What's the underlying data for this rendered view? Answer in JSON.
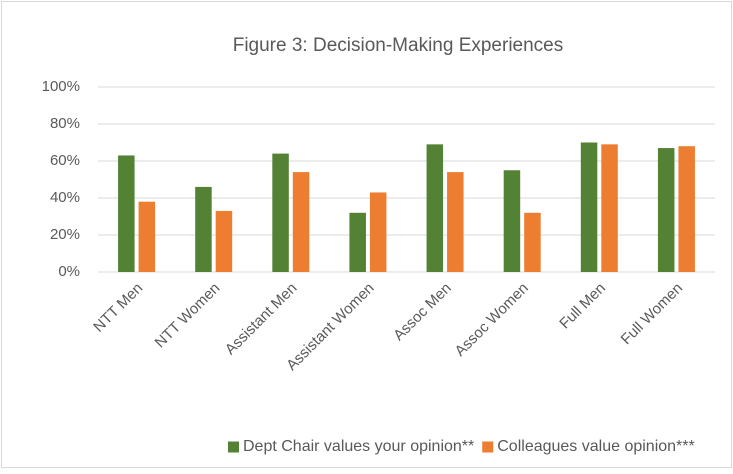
{
  "chart_data": {
    "type": "bar",
    "title": "Figure 3: Decision-Making Experiences",
    "categories": [
      "NTT Men",
      "NTT Women",
      "Assistant Men",
      "Assistant Women",
      "Assoc Men",
      "Assoc Women",
      "Full Men",
      "Full Women"
    ],
    "series": [
      {
        "name": "Dept Chair values your opinion**",
        "color": "#548235",
        "values": [
          63,
          46,
          64,
          32,
          69,
          55,
          70,
          67
        ]
      },
      {
        "name": "Colleagues value opinion***",
        "color": "#ed7d31",
        "values": [
          38,
          33,
          54,
          43,
          54,
          32,
          69,
          68
        ]
      }
    ],
    "ylim": [
      0,
      100
    ],
    "yticks": [
      {
        "value": 0,
        "label": "0%"
      },
      {
        "value": 20,
        "label": "20%"
      },
      {
        "value": 40,
        "label": "40%"
      },
      {
        "value": 60,
        "label": "60%"
      },
      {
        "value": 80,
        "label": "80%"
      },
      {
        "value": 100,
        "label": "100%"
      }
    ],
    "grid": true,
    "legend": "bottom"
  }
}
